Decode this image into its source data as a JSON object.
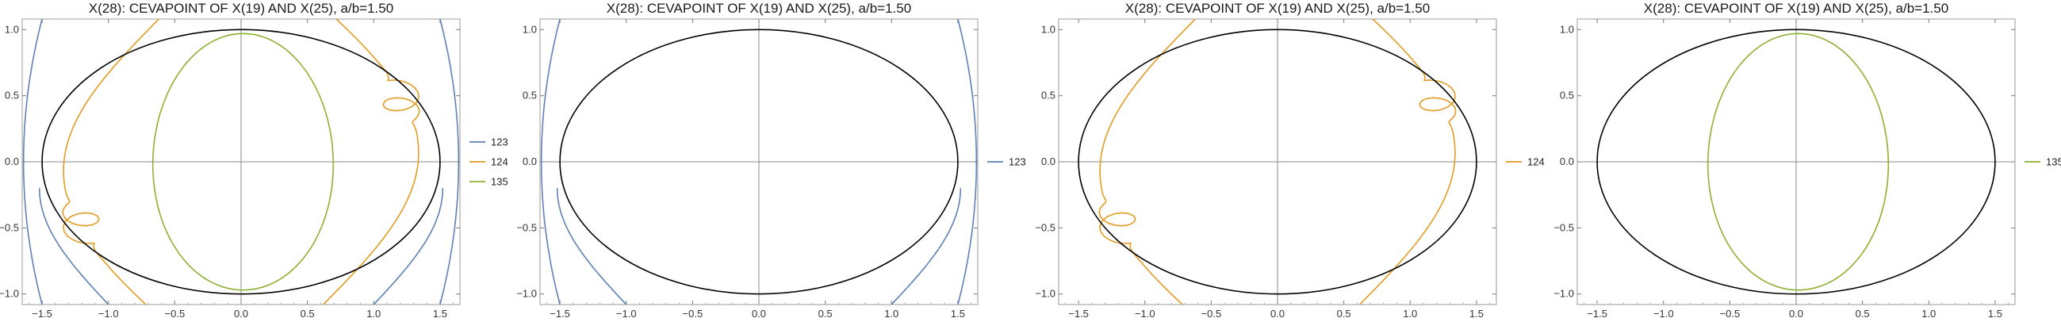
{
  "chart_data": [
    {
      "type": "line",
      "title": "X(28): CEVAPOINT OF X(19) AND X(25), a/b=1.50",
      "xlim": [
        -1.65,
        1.65
      ],
      "ylim": [
        -1.08,
        1.08
      ],
      "xticks": [
        "-1.5",
        "-1.0",
        "-0.5",
        "0.0",
        "0.5",
        "1.0",
        "1.5"
      ],
      "yticks": [
        "-1.0",
        "-0.5",
        "0.0",
        "0.5",
        "1.0"
      ],
      "grid": false,
      "legend": "right",
      "reference_curve": {
        "type": "ellipse",
        "a": 1.5,
        "b": 1.0,
        "color": "#000000"
      },
      "series": [
        {
          "name": "123",
          "color": "#5e81b5",
          "values": [
            [
              -1.6,
              1.08
            ],
            [
              -1.64,
              0.0
            ],
            [
              -1.6,
              -1.08
            ]
          ],
          "values_right": [
            [
              1.6,
              1.08
            ],
            [
              1.64,
              0.0
            ],
            [
              1.6,
              -1.08
            ]
          ],
          "values_inner_bottom": [
            [
              -1.0,
              -1.08
            ],
            [
              -1.28,
              -0.8
            ],
            [
              -1.45,
              -0.5
            ],
            [
              -1.52,
              -0.2
            ]
          ],
          "values_inner_bottom_right": [
            [
              1.0,
              -1.08
            ],
            [
              1.28,
              -0.8
            ],
            [
              1.45,
              -0.5
            ],
            [
              1.52,
              -0.2
            ]
          ]
        },
        {
          "name": "124",
          "color": "#e19c24",
          "values": [
            [
              -0.62,
              1.08
            ],
            [
              -1.02,
              0.85
            ],
            [
              -1.28,
              0.5
            ],
            [
              -1.42,
              0.1
            ],
            [
              -1.38,
              -0.2
            ],
            [
              -1.1,
              -0.45
            ],
            [
              -0.75,
              -0.6
            ],
            [
              -0.6,
              -0.55
            ],
            [
              -0.65,
              -0.45
            ],
            [
              -0.8,
              -0.44
            ],
            [
              -0.9,
              -0.55
            ],
            [
              -0.85,
              -0.75
            ],
            [
              -0.7,
              -0.95
            ],
            [
              -0.6,
              -1.08
            ]
          ],
          "values_right": [
            [
              0.6,
              1.08
            ],
            [
              0.7,
              0.95
            ],
            [
              0.85,
              0.75
            ],
            [
              0.9,
              0.55
            ],
            [
              0.8,
              0.44
            ],
            [
              0.65,
              0.45
            ],
            [
              0.6,
              0.55
            ],
            [
              0.75,
              0.6
            ],
            [
              1.1,
              0.45
            ],
            [
              1.38,
              0.2
            ],
            [
              1.42,
              -0.1
            ],
            [
              1.28,
              -0.5
            ],
            [
              1.02,
              -0.85
            ],
            [
              0.62,
              -1.08
            ]
          ]
        },
        {
          "name": "135",
          "color": "#8fb032",
          "values": [
            [
              0.0,
              0.97
            ],
            [
              0.68,
              0.5
            ],
            [
              0.68,
              -0.5
            ],
            [
              0.0,
              -0.97
            ],
            [
              -0.68,
              -0.5
            ],
            [
              -0.68,
              0.5
            ]
          ]
        }
      ]
    },
    {
      "type": "line",
      "title": "X(28): CEVAPOINT OF X(19) AND X(25), a/b=1.50",
      "xlim": [
        -1.65,
        1.65
      ],
      "ylim": [
        -1.08,
        1.08
      ],
      "xticks": [
        "-1.5",
        "-1.0",
        "-0.5",
        "0.0",
        "0.5",
        "1.0",
        "1.5"
      ],
      "yticks": [
        "-1.0",
        "-0.5",
        "0.0",
        "0.5",
        "1.0"
      ],
      "grid": false,
      "legend": "right",
      "reference_curve": {
        "type": "ellipse",
        "a": 1.5,
        "b": 1.0,
        "color": "#000000"
      },
      "series": [
        {
          "name": "123",
          "color": "#5e81b5",
          "values": [
            [
              -1.6,
              1.08
            ],
            [
              -1.64,
              0.0
            ],
            [
              -1.6,
              -1.08
            ]
          ]
        }
      ]
    },
    {
      "type": "line",
      "title": "X(28): CEVAPOINT OF X(19) AND X(25), a/b=1.50",
      "xlim": [
        -1.65,
        1.65
      ],
      "ylim": [
        -1.08,
        1.08
      ],
      "xticks": [
        "-1.5",
        "-1.0",
        "-0.5",
        "0.0",
        "0.5",
        "1.0",
        "1.5"
      ],
      "yticks": [
        "-1.0",
        "-0.5",
        "0.0",
        "0.5",
        "1.0"
      ],
      "grid": false,
      "legend": "right",
      "reference_curve": {
        "type": "ellipse",
        "a": 1.5,
        "b": 1.0,
        "color": "#000000"
      },
      "series": [
        {
          "name": "124",
          "color": "#e19c24",
          "values": [
            [
              -0.62,
              1.08
            ],
            [
              -1.28,
              0.5
            ],
            [
              -1.38,
              -0.2
            ],
            [
              -0.6,
              -1.08
            ]
          ]
        }
      ]
    },
    {
      "type": "line",
      "title": "X(28): CEVAPOINT OF X(19) AND X(25), a/b=1.50",
      "xlim": [
        -1.65,
        1.65
      ],
      "ylim": [
        -1.08,
        1.08
      ],
      "xticks": [
        "-1.5",
        "-1.0",
        "-0.5",
        "0.0",
        "0.5",
        "1.0",
        "1.5"
      ],
      "yticks": [
        "-1.0",
        "-0.5",
        "0.0",
        "0.5",
        "1.0"
      ],
      "grid": false,
      "legend": "right",
      "reference_curve": {
        "type": "ellipse",
        "a": 1.5,
        "b": 1.0,
        "color": "#000000"
      },
      "series": [
        {
          "name": "135",
          "color": "#8fb032",
          "values": [
            [
              0.0,
              0.97
            ],
            [
              0.68,
              0.5
            ],
            [
              0.68,
              -0.5
            ],
            [
              0.0,
              -0.97
            ],
            [
              -0.68,
              -0.5
            ],
            [
              -0.68,
              0.5
            ]
          ]
        }
      ]
    }
  ]
}
